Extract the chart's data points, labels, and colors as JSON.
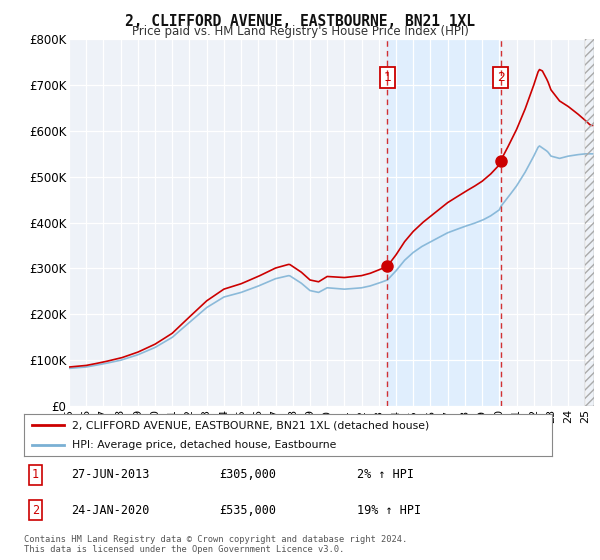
{
  "title": "2, CLIFFORD AVENUE, EASTBOURNE, BN21 1XL",
  "subtitle": "Price paid vs. HM Land Registry's House Price Index (HPI)",
  "legend_label_red": "2, CLIFFORD AVENUE, EASTBOURNE, BN21 1XL (detached house)",
  "legend_label_blue": "HPI: Average price, detached house, Eastbourne",
  "annotation1_date": "27-JUN-2013",
  "annotation1_price": "£305,000",
  "annotation1_hpi": "2% ↑ HPI",
  "annotation2_date": "24-JAN-2020",
  "annotation2_price": "£535,000",
  "annotation2_hpi": "19% ↑ HPI",
  "footnote": "Contains HM Land Registry data © Crown copyright and database right 2024.\nThis data is licensed under the Open Government Licence v3.0.",
  "red_color": "#cc0000",
  "blue_color": "#7ab0d4",
  "shade_color": "#ddeeff",
  "background_color": "#ffffff",
  "plot_bg_color": "#eef2f8",
  "grid_color": "#ffffff",
  "ylim": [
    0,
    800000
  ],
  "yticks": [
    0,
    100000,
    200000,
    300000,
    400000,
    500000,
    600000,
    700000,
    800000
  ],
  "ytick_labels": [
    "£0",
    "£100K",
    "£200K",
    "£300K",
    "£400K",
    "£500K",
    "£600K",
    "£700K",
    "£800K"
  ],
  "sale1_x": 2013.5,
  "sale1_y": 305000,
  "sale2_x": 2020.08,
  "sale2_y": 535000,
  "xmin": 1995.0,
  "xmax": 2025.5
}
